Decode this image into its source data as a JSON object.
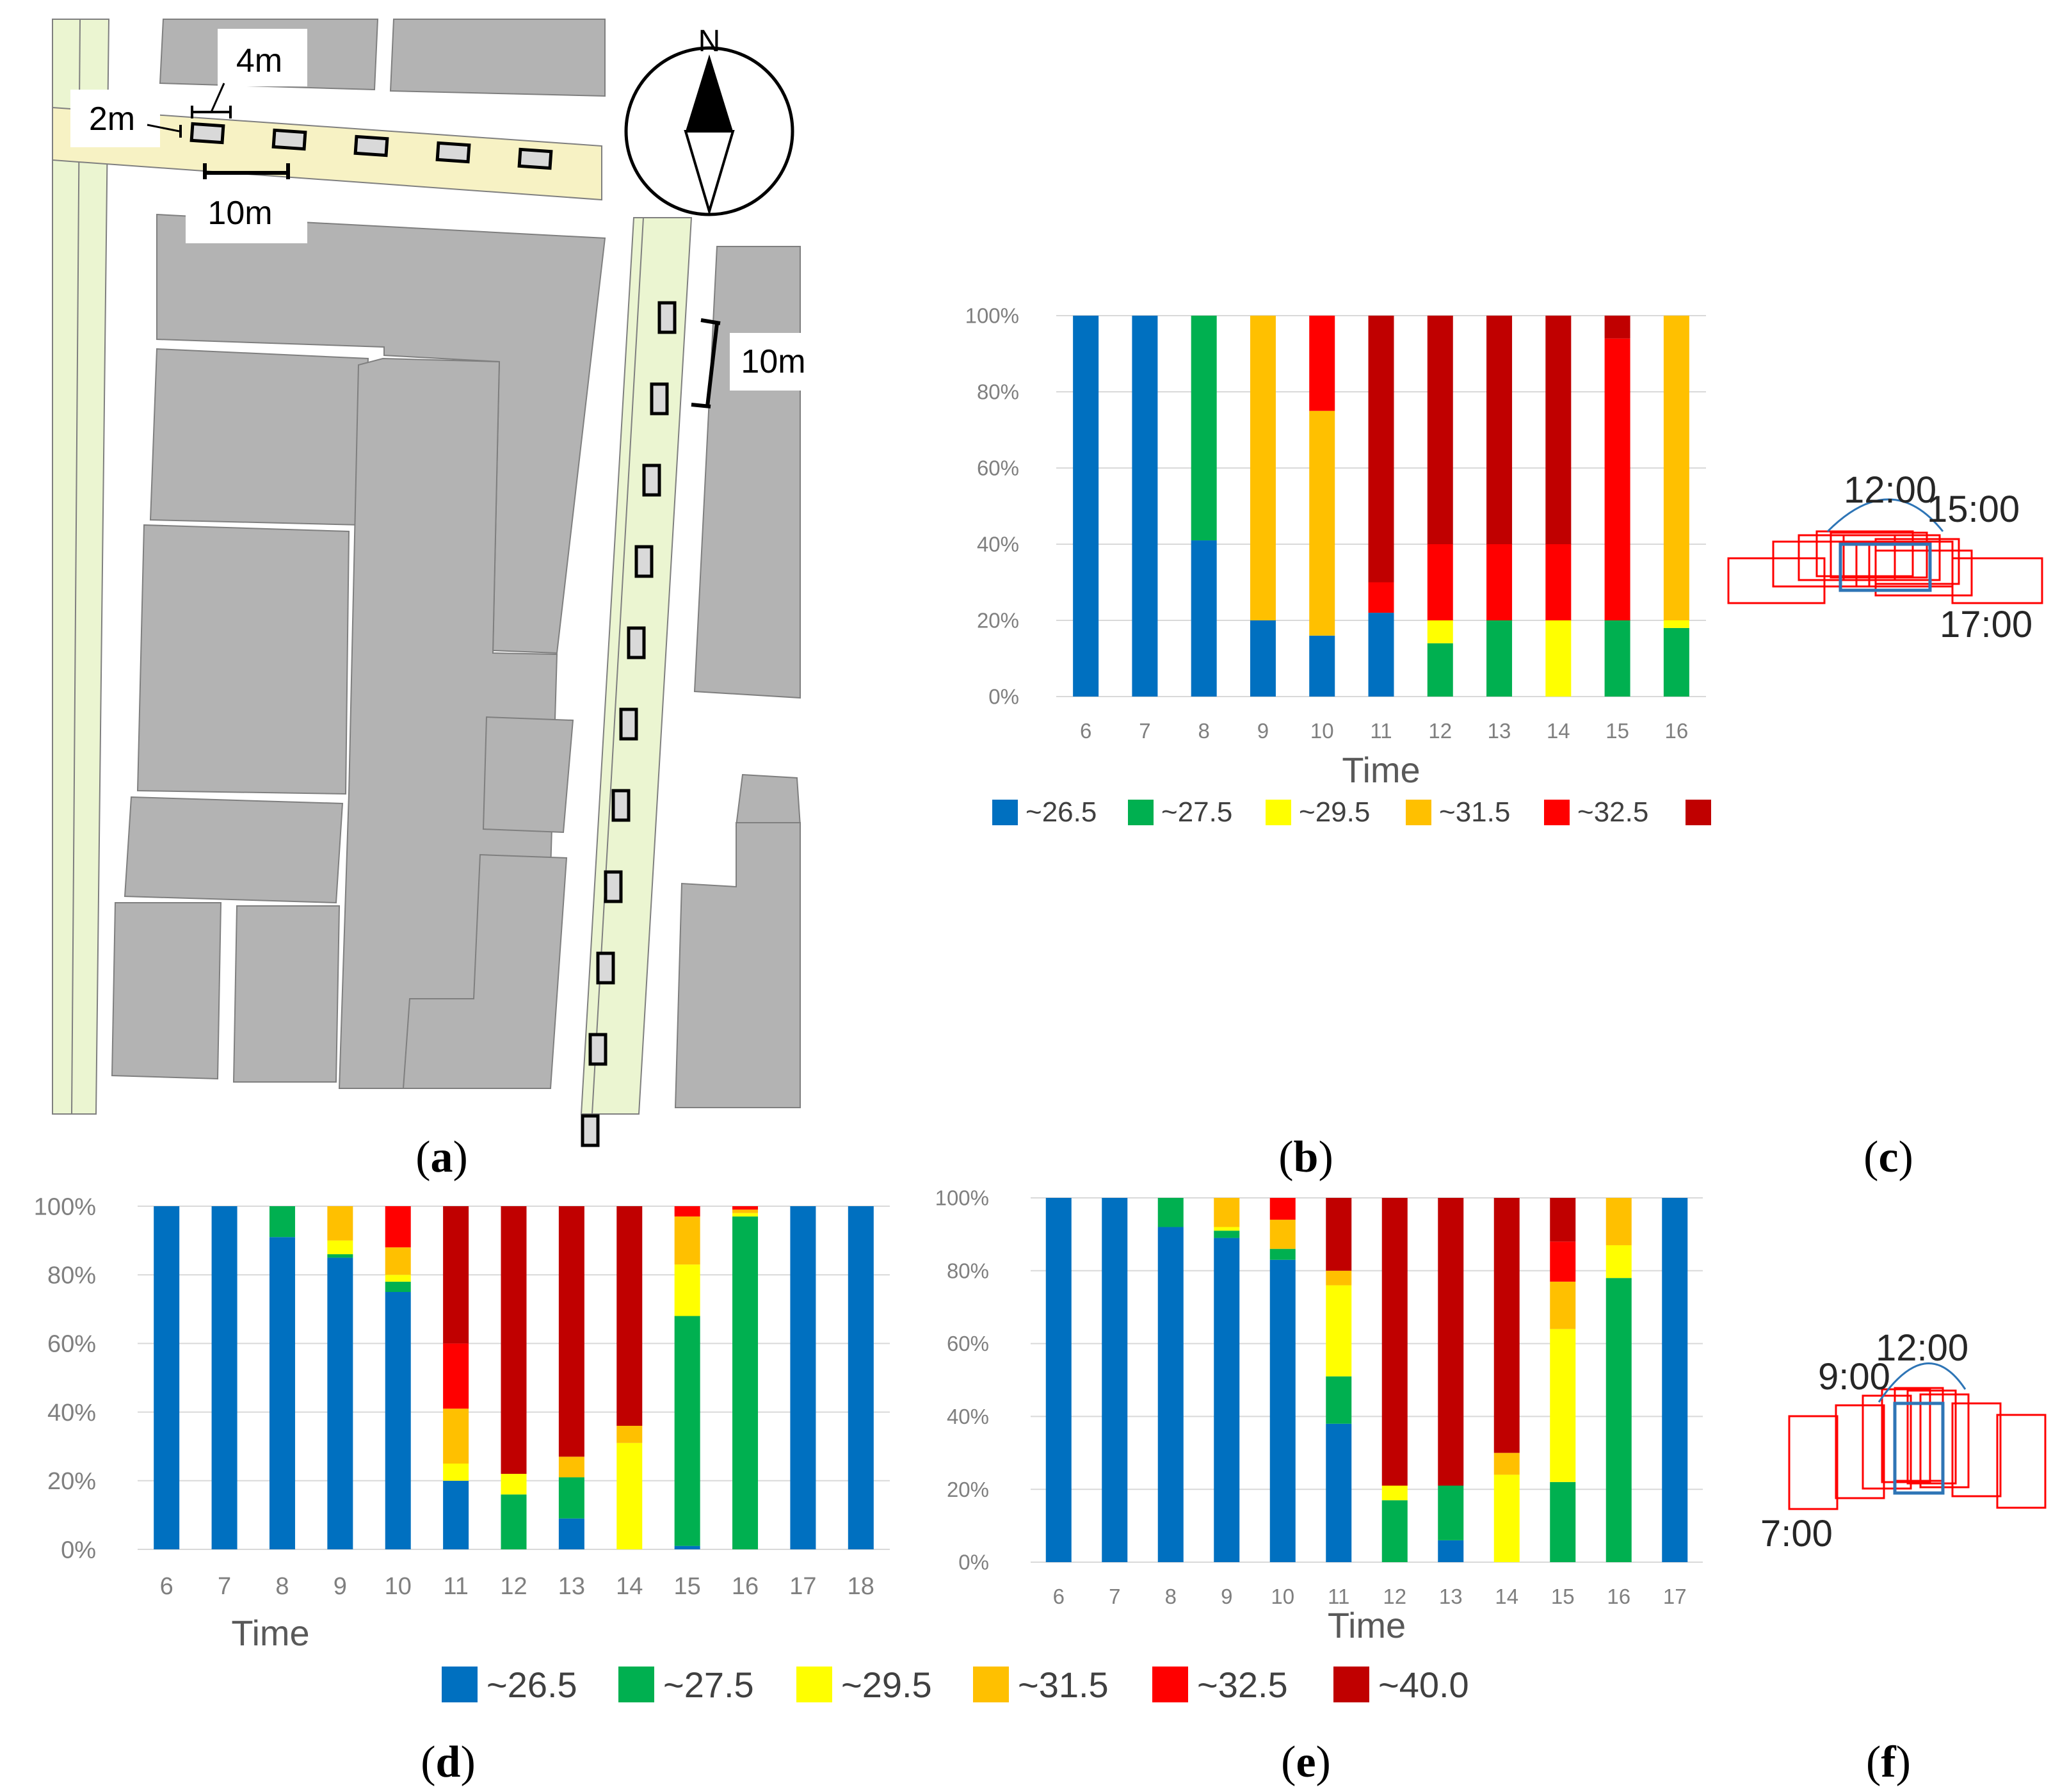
{
  "panels": {
    "a": {
      "label_open": "(",
      "label_letter": "a",
      "label_close": ")",
      "scale_labels": {
        "vent_length": "4m",
        "vent_width": "2m",
        "spacing_ew": "10m",
        "spacing_ns": "10m"
      },
      "north": "N"
    },
    "b": {
      "label_open": "(",
      "label_letter": "b",
      "label_close": ")"
    },
    "c": {
      "label_open": "(",
      "label_letter": "c",
      "label_close": ")",
      "times": {
        "noon": "12:00",
        "afternoon": "15:00",
        "evening": "17:00"
      }
    },
    "d": {
      "label_open": "(",
      "label_letter": "d",
      "label_close": ")"
    },
    "e": {
      "label_open": "(",
      "label_letter": "e",
      "label_close": ")"
    },
    "f": {
      "label_open": "(",
      "label_letter": "f",
      "label_close": ")",
      "times": {
        "noon": "12:00",
        "morning": "9:00",
        "early": "7:00"
      }
    }
  },
  "legend_entries": [
    "~26.5",
    "~27.5",
    "~29.5",
    "~31.5",
    "~32.5",
    "~40.0"
  ],
  "legend_entries_b": [
    "~26.5",
    "~27.5",
    "~29.5",
    "~31.5",
    "~32.5",
    ""
  ],
  "colors": {
    "~26.5": "#0070c0",
    "~27.5": "#00b050",
    "~29.5": "#ffff00",
    "~31.5": "#ffc000",
    "~32.5": "#ff0000",
    "~40.0": "#c00000",
    "building": "#b3b3b3",
    "sidewalk": "#ebf5d1",
    "sidewalk_top": "#f7f2c4"
  },
  "chart_data": [
    {
      "id": "b",
      "type": "bar",
      "stacked": true,
      "xlabel": "Time",
      "categories": [
        "6",
        "7",
        "8",
        "9",
        "10",
        "11",
        "12",
        "13",
        "14",
        "15",
        "16"
      ],
      "y_ticks": [
        "0%",
        "20%",
        "40%",
        "60%",
        "80%",
        "100%"
      ],
      "ylim": [
        0,
        100
      ],
      "grid": true,
      "legend_position": "bottom",
      "series": [
        {
          "name": "~26.5",
          "values": [
            100,
            100,
            41,
            20,
            16,
            22,
            0,
            0,
            0,
            0,
            0
          ]
        },
        {
          "name": "~27.5",
          "values": [
            0,
            0,
            59,
            0,
            0,
            0,
            14,
            20,
            0,
            20,
            18
          ]
        },
        {
          "name": "~29.5",
          "values": [
            0,
            0,
            0,
            0,
            0,
            0,
            6,
            0,
            20,
            0,
            2
          ]
        },
        {
          "name": "~31.5",
          "values": [
            0,
            0,
            0,
            80,
            59,
            0,
            0,
            0,
            0,
            0,
            80
          ]
        },
        {
          "name": "~32.5",
          "values": [
            0,
            0,
            0,
            0,
            25,
            8,
            20,
            20,
            20,
            74,
            0
          ]
        },
        {
          "name": "~40.0",
          "values": [
            0,
            0,
            0,
            0,
            0,
            70,
            60,
            60,
            60,
            6,
            0
          ]
        }
      ]
    },
    {
      "id": "d",
      "type": "bar",
      "stacked": true,
      "xlabel": "Time",
      "categories": [
        "6",
        "7",
        "8",
        "9",
        "10",
        "11",
        "12",
        "13",
        "14",
        "15",
        "16",
        "17",
        "18"
      ],
      "y_ticks": [
        "0%",
        "20%",
        "40%",
        "60%",
        "80%",
        "100%"
      ],
      "ylim": [
        0,
        100
      ],
      "grid": true,
      "legend_position": "bottom",
      "series": [
        {
          "name": "~26.5",
          "values": [
            100,
            100,
            91,
            85,
            75,
            20,
            0,
            9,
            0,
            1,
            0,
            100,
            100
          ]
        },
        {
          "name": "~27.5",
          "values": [
            0,
            0,
            9,
            1,
            3,
            0,
            16,
            12,
            0,
            67,
            97,
            0,
            0
          ]
        },
        {
          "name": "~29.5",
          "values": [
            0,
            0,
            0,
            4,
            2,
            5,
            6,
            0,
            31,
            15,
            1,
            0,
            0
          ]
        },
        {
          "name": "~31.5",
          "values": [
            0,
            0,
            0,
            10,
            8,
            16,
            0,
            6,
            5,
            14,
            1,
            0,
            0
          ]
        },
        {
          "name": "~32.5",
          "values": [
            0,
            0,
            0,
            0,
            12,
            19,
            0,
            0,
            0,
            3,
            1,
            0,
            0
          ]
        },
        {
          "name": "~40.0",
          "values": [
            0,
            0,
            0,
            0,
            0,
            40,
            78,
            73,
            64,
            0,
            0,
            0,
            0
          ]
        }
      ]
    },
    {
      "id": "e",
      "type": "bar",
      "stacked": true,
      "xlabel": "Time",
      "categories": [
        "6",
        "7",
        "8",
        "9",
        "10",
        "11",
        "12",
        "13",
        "14",
        "15",
        "16",
        "17"
      ],
      "y_ticks": [
        "0%",
        "20%",
        "40%",
        "60%",
        "80%",
        "100%"
      ],
      "ylim": [
        0,
        100
      ],
      "grid": true,
      "legend_position": "bottom",
      "series": [
        {
          "name": "~26.5",
          "values": [
            100,
            100,
            92,
            89,
            83,
            38,
            0,
            6,
            0,
            0,
            0,
            100
          ]
        },
        {
          "name": "~27.5",
          "values": [
            0,
            0,
            8,
            2,
            3,
            13,
            17,
            15,
            0,
            22,
            78,
            0
          ]
        },
        {
          "name": "~29.5",
          "values": [
            0,
            0,
            0,
            1,
            0,
            25,
            4,
            0,
            24,
            42,
            9,
            0
          ]
        },
        {
          "name": "~31.5",
          "values": [
            0,
            0,
            0,
            8,
            8,
            4,
            0,
            0,
            6,
            13,
            13,
            0
          ]
        },
        {
          "name": "~32.5",
          "values": [
            0,
            0,
            0,
            0,
            6,
            0,
            0,
            0,
            0,
            11,
            0,
            0
          ]
        },
        {
          "name": "~40.0",
          "values": [
            0,
            0,
            0,
            0,
            0,
            20,
            79,
            79,
            70,
            12,
            0,
            0
          ]
        }
      ]
    }
  ]
}
